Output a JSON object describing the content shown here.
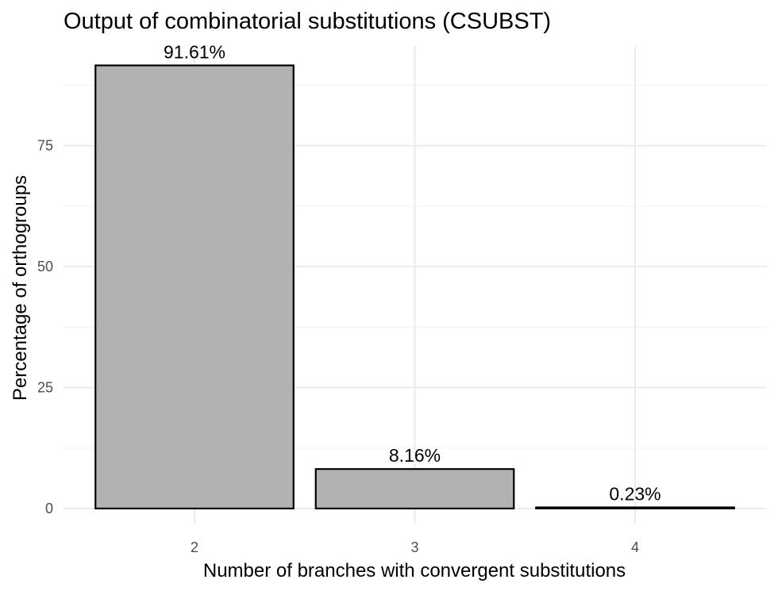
{
  "chart_data": {
    "type": "bar",
    "title": "Output of combinatorial substitutions (CSUBST)",
    "xlabel": "Number of branches with convergent substitutions",
    "ylabel": "Percentage of orthogroups",
    "categories": [
      "2",
      "3",
      "4"
    ],
    "values": [
      91.61,
      8.16,
      0.23
    ],
    "data_labels": [
      "91.61%",
      "8.16%",
      "0.23%"
    ],
    "yticks": [
      0,
      25,
      50,
      75
    ],
    "ytick_labels": [
      "0",
      "25",
      "50",
      "75"
    ],
    "ylim": [
      0,
      96
    ],
    "grid": true,
    "bar_fill": "#b2b2b2",
    "bar_outline": "#000000"
  }
}
